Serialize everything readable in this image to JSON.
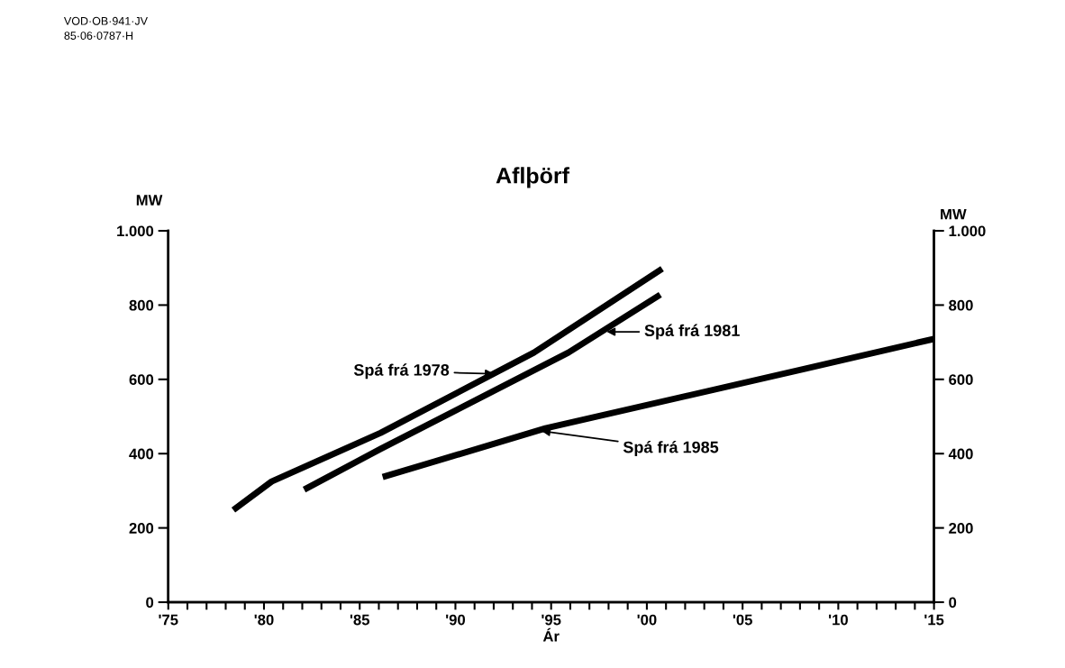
{
  "chart_data": {
    "type": "line",
    "title": "Aflþörf",
    "xlabel": "Ár",
    "ylabel": "MW",
    "y2label": "MW",
    "series": [
      {
        "color": "#000000",
        "x": [
          1978.4,
          1980.4,
          1986.1,
          1994.1,
          2000.8
        ],
        "values": [
          248,
          325,
          456,
          672,
          898
        ]
      },
      {
        "color": "#000000",
        "x": [
          1982.1,
          1986.1,
          1995.9,
          2000.7
        ],
        "values": [
          303,
          413,
          672,
          828
        ]
      },
      {
        "color": "#000000",
        "x": [
          1986.2,
          1994.7,
          2008.3,
          2015
        ],
        "values": [
          337,
          468,
          629,
          709
        ]
      }
    ],
    "annotations": [
      {
        "text": "Spá frá 1978",
        "x": 1992.0,
        "y": 615
      },
      {
        "text": "Spá frá 1981",
        "x": 1997.9,
        "y": 728
      },
      {
        "text": "Spá frá 1985",
        "x": 1994.5,
        "y": 461
      },
      "VOD·OB·941·JV",
      "85·06·0787·H"
    ],
    "xlim": [
      1975,
      2015
    ],
    "xticks": [
      {
        "value": 1975,
        "label": "'75"
      },
      {
        "value": 1976,
        "label": null
      },
      {
        "value": 1977,
        "label": null
      },
      {
        "value": 1978,
        "label": null
      },
      {
        "value": 1979,
        "label": null
      },
      {
        "value": 1980,
        "label": "'80"
      },
      {
        "value": 1981,
        "label": null
      },
      {
        "value": 1982,
        "label": null
      },
      {
        "value": 1983,
        "label": null
      },
      {
        "value": 1984,
        "label": null
      },
      {
        "value": 1985,
        "label": "'85"
      },
      {
        "value": 1986,
        "label": null
      },
      {
        "value": 1987,
        "label": null
      },
      {
        "value": 1988,
        "label": null
      },
      {
        "value": 1989,
        "label": null
      },
      {
        "value": 1990,
        "label": "'90"
      },
      {
        "value": 1991,
        "label": null
      },
      {
        "value": 1992,
        "label": null
      },
      {
        "value": 1993,
        "label": null
      },
      {
        "value": 1994,
        "label": null
      },
      {
        "value": 1995,
        "label": "'95"
      },
      {
        "value": 1996,
        "label": null
      },
      {
        "value": 1997,
        "label": null
      },
      {
        "value": 1998,
        "label": null
      },
      {
        "value": 1999,
        "label": null
      },
      {
        "value": 2000,
        "label": "'00"
      },
      {
        "value": 2001,
        "label": null
      },
      {
        "value": 2002,
        "label": null
      },
      {
        "value": 2003,
        "label": null
      },
      {
        "value": 2004,
        "label": null
      },
      {
        "value": 2005,
        "label": "'05"
      },
      {
        "value": 2006,
        "label": null
      },
      {
        "value": 2007,
        "label": null
      },
      {
        "value": 2008,
        "label": null
      },
      {
        "value": 2009,
        "label": null
      },
      {
        "value": 2010,
        "label": "'10"
      },
      {
        "value": 2011,
        "label": null
      },
      {
        "value": 2012,
        "label": null
      },
      {
        "value": 2013,
        "label": null
      },
      {
        "value": 2014,
        "label": null
      },
      {
        "value": 2015,
        "label": "'15"
      }
    ],
    "ylim": [
      0,
      1000
    ],
    "yticks": [
      0,
      200,
      400,
      600,
      800,
      {
        "value": 1000,
        "label": "1.000"
      }
    ],
    "y2lim": [
      0,
      1000
    ],
    "y2ticks": [
      0,
      200,
      400,
      600,
      800,
      {
        "value": 1000,
        "label": "1.000"
      }
    ],
    "grid": false,
    "marker": "none",
    "line_style": "solid"
  }
}
